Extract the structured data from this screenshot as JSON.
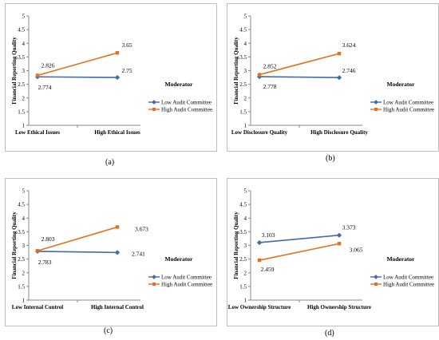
{
  "colors": {
    "low": "#3f6bb0",
    "high": "#e5711e",
    "axis": "#888888",
    "frame": "#bfbfbf"
  },
  "chart_data": [
    {
      "type": "line",
      "caption": "(a)",
      "ylabel": "Financial Reporting Quality",
      "ylim": [
        1,
        5
      ],
      "yticks": [
        "1",
        "1.5",
        "2",
        "2.5",
        "3",
        "3.5",
        "4",
        "4.5",
        "5"
      ],
      "categories": [
        "Low Ethical Issues",
        "High Ethical Issues"
      ],
      "legend_title": "Moderator",
      "series": [
        {
          "name": "Low Audit Committee",
          "values": [
            2.774,
            2.75
          ],
          "labels": [
            "2.774",
            "2.75"
          ]
        },
        {
          "name": "High Audit Committee",
          "values": [
            2.826,
            3.65
          ],
          "labels": [
            "2.826",
            "3.65"
          ]
        }
      ]
    },
    {
      "type": "line",
      "caption": "(b)",
      "ylabel": "Financial Reporting Quality",
      "ylim": [
        1,
        5
      ],
      "yticks": [
        "1",
        "1.5",
        "2",
        "2.5",
        "3",
        "3.5",
        "4",
        "4.5",
        "5"
      ],
      "categories": [
        "Low Disclosure Quality",
        "High Disclosure Quality"
      ],
      "legend_title": "Moderator",
      "series": [
        {
          "name": "Low Audit Committee",
          "values": [
            2.778,
            2.746
          ],
          "labels": [
            "2.778",
            "2.746"
          ]
        },
        {
          "name": "High Audit Committee",
          "values": [
            2.852,
            3.624
          ],
          "labels": [
            "2.852",
            "3.624"
          ]
        }
      ]
    },
    {
      "type": "line",
      "caption": "(c)",
      "ylabel": "Financial Reporting Quality",
      "ylim": [
        1,
        5
      ],
      "yticks": [
        "1",
        "1.5",
        "2",
        "2.5",
        "3",
        "3.5",
        "4",
        "4.5",
        "5"
      ],
      "categories": [
        "Low Internal Control",
        "High Internal Control"
      ],
      "legend_title": "Moderator",
      "series": [
        {
          "name": "Low Audit Committee",
          "values": [
            2.783,
            2.741
          ],
          "labels": [
            "2.783",
            "2.741"
          ]
        },
        {
          "name": "High Audit Committee",
          "values": [
            2.803,
            3.673
          ],
          "labels": [
            "2.803",
            "3.673"
          ]
        }
      ]
    },
    {
      "type": "line",
      "caption": "(d)",
      "ylabel": "Financial Reporting Quality",
      "ylim": [
        1,
        5
      ],
      "yticks": [
        "1",
        "1.5",
        "2",
        "2.5",
        "3",
        "3.5",
        "4",
        "4.5",
        "5"
      ],
      "categories": [
        "Low Ownership Structure",
        "High Ownership Structure"
      ],
      "legend_title": "Moderator",
      "series": [
        {
          "name": "Low Audit Committee",
          "values": [
            3.103,
            3.373
          ],
          "labels": [
            "3.103",
            "3.373"
          ]
        },
        {
          "name": "High Audit Committee",
          "values": [
            2.459,
            3.065
          ],
          "labels": [
            "2.459",
            "3.065"
          ]
        }
      ]
    }
  ]
}
